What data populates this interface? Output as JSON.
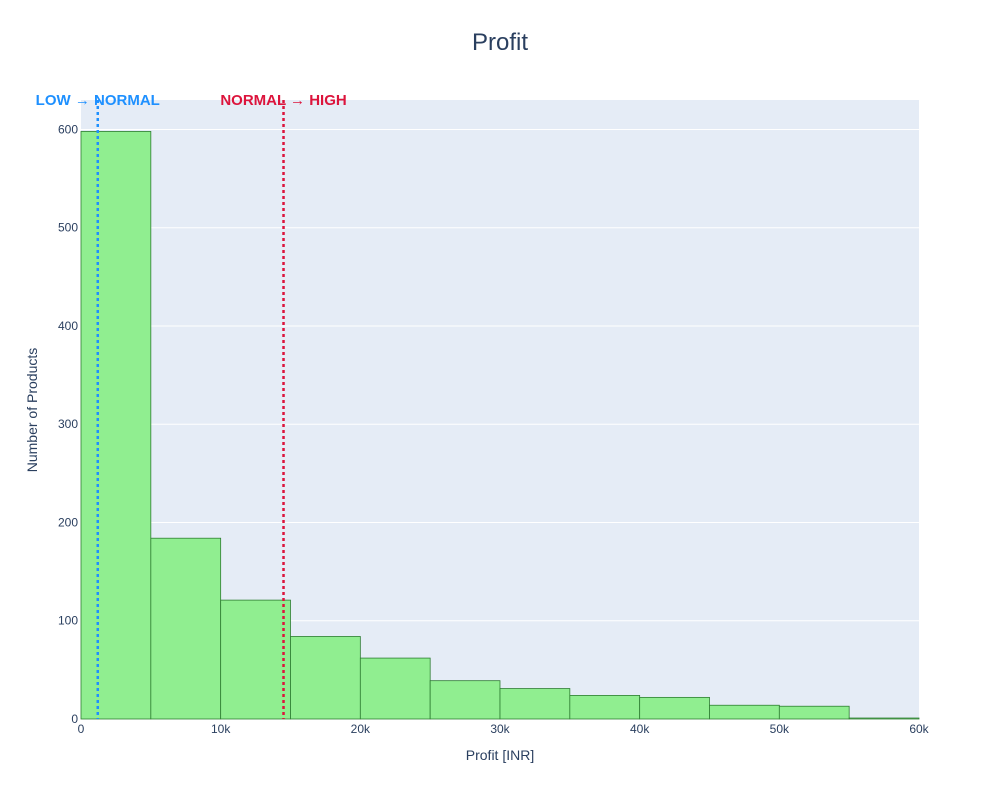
{
  "chart_data": {
    "type": "bar",
    "title": "Profit",
    "xlabel": "Profit [INR]",
    "ylabel": "Number of Products",
    "xlim": [
      0,
      60000
    ],
    "ylim": [
      0,
      630
    ],
    "x_ticks": [
      0,
      10000,
      20000,
      30000,
      40000,
      50000,
      60000
    ],
    "x_tick_labels": [
      "0",
      "10k",
      "20k",
      "30k",
      "40k",
      "50k",
      "60k"
    ],
    "y_ticks": [
      0,
      100,
      200,
      300,
      400,
      500,
      600
    ],
    "y_tick_labels": [
      "0",
      "100",
      "200",
      "300",
      "400",
      "500",
      "600"
    ],
    "grid": true,
    "bins": [
      {
        "x0": 0,
        "x1": 5000,
        "count": 598
      },
      {
        "x0": 5000,
        "x1": 10000,
        "count": 184
      },
      {
        "x0": 10000,
        "x1": 15000,
        "count": 121
      },
      {
        "x0": 15000,
        "x1": 20000,
        "count": 84
      },
      {
        "x0": 20000,
        "x1": 25000,
        "count": 62
      },
      {
        "x0": 25000,
        "x1": 30000,
        "count": 39
      },
      {
        "x0": 30000,
        "x1": 35000,
        "count": 31
      },
      {
        "x0": 35000,
        "x1": 40000,
        "count": 24
      },
      {
        "x0": 40000,
        "x1": 45000,
        "count": 22
      },
      {
        "x0": 45000,
        "x1": 50000,
        "count": 14
      },
      {
        "x0": 50000,
        "x1": 55000,
        "count": 13
      },
      {
        "x0": 55000,
        "x1": 60000,
        "count": 1
      }
    ],
    "thresholds": [
      {
        "x": 1200,
        "label": "LOW → NORMAL",
        "color": "#1e90ff"
      },
      {
        "x": 14500,
        "label": "NORMAL → HIGH",
        "color": "#dc143c"
      }
    ],
    "colors": {
      "bar_fill": "#90ee90",
      "bar_stroke": "#2e7d32",
      "plot_bg": "#e5ecf6",
      "grid": "#ffffff",
      "text": "#2a3f5f",
      "tick_text": "#2a3f5f"
    }
  }
}
